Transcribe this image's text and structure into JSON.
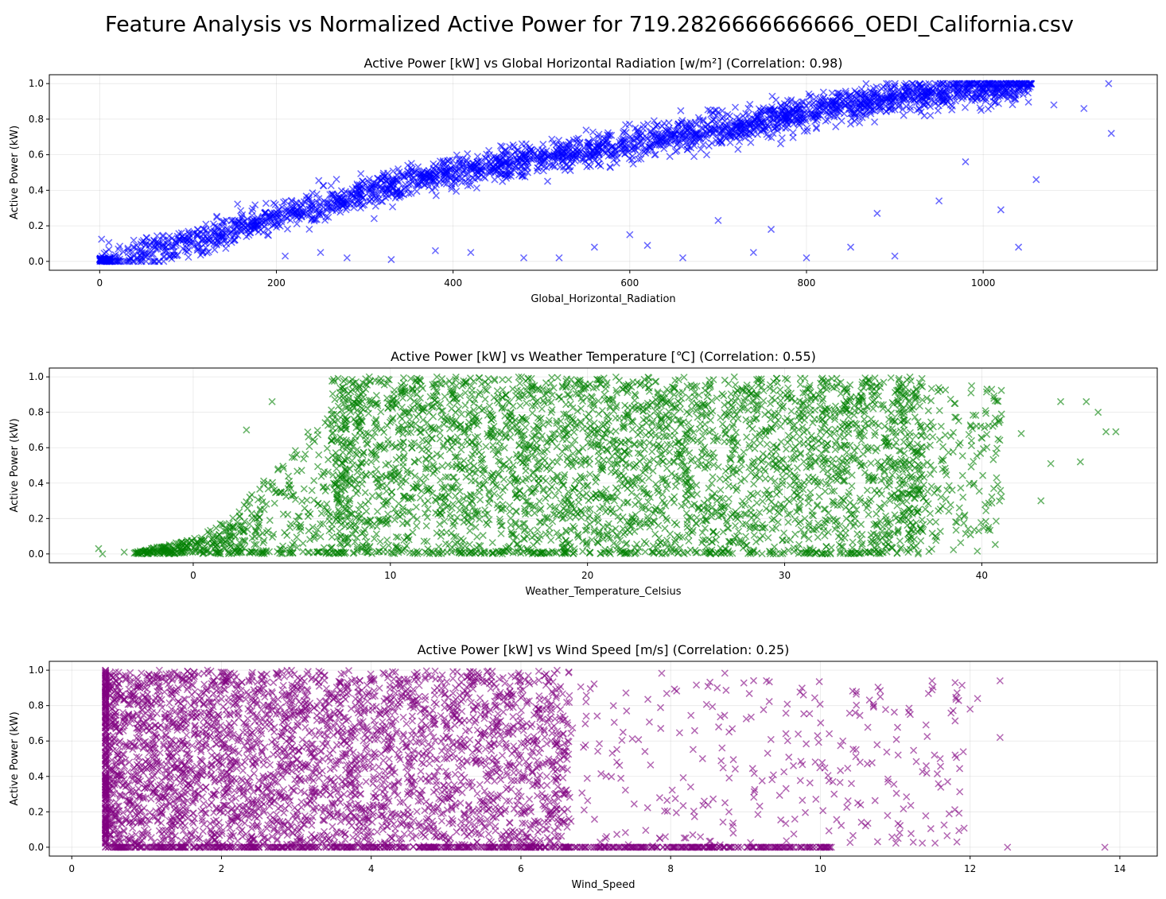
{
  "figure": {
    "title": "Feature Analysis vs Normalized Active Power for 719.2826666666666_OEDI_California.csv"
  },
  "chart_data": [
    {
      "type": "scatter",
      "title": "Active Power [kW] vs Global Horizontal Radiation [w/m²] (Correlation: 0.98)",
      "xlabel": "Global_Horizontal_Radiation",
      "ylabel": "Active Power (kW)",
      "xlim": [
        -57,
        1197
      ],
      "ylim": [
        -0.05,
        1.05
      ],
      "xticks": [
        0,
        200,
        400,
        600,
        800,
        1000
      ],
      "yticks": [
        0.0,
        0.2,
        0.4,
        0.6,
        0.8,
        1.0
      ],
      "grid": true,
      "marker": "x",
      "color": "#0000ff",
      "series": [
        {
          "description": "dense band rising roughly linearly from (0, 0) to (1050, 1.0)",
          "band": [
            [
              0,
              0.0
            ],
            [
              100,
              0.1
            ],
            [
              200,
              0.25
            ],
            [
              300,
              0.38
            ],
            [
              400,
              0.5
            ],
            [
              500,
              0.58
            ],
            [
              600,
              0.66
            ],
            [
              700,
              0.74
            ],
            [
              800,
              0.84
            ],
            [
              900,
              0.92
            ],
            [
              1000,
              0.97
            ],
            [
              1050,
              0.99
            ]
          ],
          "outliers": [
            [
              1114,
              0.86
            ],
            [
              1142,
              1.0
            ],
            [
              1145,
              0.72
            ],
            [
              1080,
              0.88
            ],
            [
              1060,
              0.46
            ],
            [
              1040,
              0.08
            ],
            [
              1020,
              0.29
            ],
            [
              980,
              0.56
            ],
            [
              950,
              0.34
            ],
            [
              900,
              0.03
            ],
            [
              880,
              0.27
            ],
            [
              850,
              0.08
            ],
            [
              800,
              0.02
            ],
            [
              760,
              0.18
            ],
            [
              740,
              0.05
            ],
            [
              700,
              0.23
            ],
            [
              660,
              0.02
            ],
            [
              620,
              0.09
            ],
            [
              600,
              0.15
            ],
            [
              560,
              0.08
            ],
            [
              520,
              0.02
            ],
            [
              480,
              0.02
            ],
            [
              420,
              0.05
            ],
            [
              380,
              0.06
            ],
            [
              330,
              0.01
            ],
            [
              280,
              0.02
            ],
            [
              250,
              0.05
            ],
            [
              210,
              0.03
            ]
          ]
        }
      ]
    },
    {
      "type": "scatter",
      "title": "Active Power [kW] vs Weather Temperature [℃] (Correlation: 0.55)",
      "xlabel": "Weather_Temperature_Celsius",
      "ylabel": "Active Power (kW)",
      "xlim": [
        -7.3,
        48.9
      ],
      "ylim": [
        -0.05,
        1.05
      ],
      "xticks": [
        0,
        10,
        20,
        30,
        40
      ],
      "yticks": [
        0.0,
        0.2,
        0.4,
        0.6,
        0.8,
        1.0
      ],
      "grid": true,
      "marker": "x",
      "color": "#008000",
      "series": [
        {
          "description": "dense block from about 9 to 36 °C spanning 0 to 1.0; lower envelope rising from -3 to 9 °C",
          "envelope": [
            [
              -3,
              0.01
            ],
            [
              0,
              0.08
            ],
            [
              2,
              0.2
            ],
            [
              4,
              0.45
            ],
            [
              6,
              0.7
            ],
            [
              8,
              0.88
            ],
            [
              9,
              1.0
            ]
          ],
          "block": {
            "x": [
              9,
              36
            ],
            "y": [
              0.0,
              1.0
            ]
          },
          "outliers": [
            [
              -4.8,
              0.03
            ],
            [
              -4.6,
              0.0
            ],
            [
              -3.5,
              0.01
            ],
            [
              2.7,
              0.7
            ],
            [
              4.0,
              0.86
            ],
            [
              40.5,
              0.93
            ],
            [
              41.0,
              0.79
            ],
            [
              42.0,
              0.68
            ],
            [
              43.0,
              0.3
            ],
            [
              43.5,
              0.51
            ],
            [
              44.0,
              0.86
            ],
            [
              45.0,
              0.52
            ],
            [
              45.3,
              0.86
            ],
            [
              45.9,
              0.8
            ],
            [
              46.3,
              0.69
            ],
            [
              46.8,
              0.69
            ]
          ]
        }
      ]
    },
    {
      "type": "scatter",
      "title": "Active Power [kW] vs Wind Speed [m/s] (Correlation: 0.25)",
      "xlabel": "Wind_Speed",
      "ylabel": "Active Power (kW)",
      "xlim": [
        -0.3,
        14.5
      ],
      "ylim": [
        -0.05,
        1.05
      ],
      "xticks": [
        0,
        2,
        4,
        6,
        8,
        10,
        12,
        14
      ],
      "yticks": [
        0.0,
        0.2,
        0.4,
        0.6,
        0.8,
        1.0
      ],
      "grid": true,
      "marker": "x",
      "color": "#800080",
      "series": [
        {
          "description": "dense block from about 0.4 to 6 m/s spanning 0 to 1.0, thinning toward 12 m/s; floor at 0 extending to ~12.5",
          "block": {
            "x": [
              0.4,
              6.0
            ],
            "y": [
              0.0,
              1.0
            ]
          },
          "outliers": [
            [
              13.8,
              0.0
            ],
            [
              12.5,
              0.0
            ],
            [
              12.4,
              0.62
            ],
            [
              12.4,
              0.94
            ],
            [
              12.1,
              0.84
            ],
            [
              12.0,
              0.78
            ],
            [
              11.8,
              0.93
            ],
            [
              11.7,
              0.37
            ],
            [
              11.6,
              0.5
            ],
            [
              11.2,
              0.75
            ],
            [
              10.8,
              0.85
            ],
            [
              10.5,
              0.25
            ],
            [
              10.3,
              0.6
            ]
          ]
        }
      ]
    }
  ]
}
